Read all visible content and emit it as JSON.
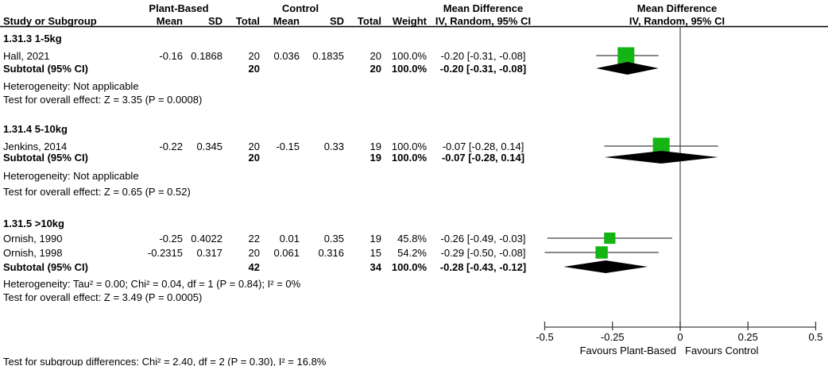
{
  "header": {
    "group1_label": "Plant-Based",
    "group2_label": "Control",
    "effect_title": "Mean Difference",
    "effect_sub": "IV, Random, 95% CI",
    "plot_title": "Mean Difference",
    "plot_sub": "IV, Random, 95% CI",
    "col_study": "Study or Subgroup",
    "col_mean": "Mean",
    "col_sd": "SD",
    "col_total": "Total",
    "col_weight": "Weight"
  },
  "chart_data": {
    "type": "forest",
    "effect_measure": "Mean Difference",
    "method": "IV, Random, 95% CI",
    "x_axis": {
      "min": -0.5,
      "max": 0.5,
      "tick_values": [
        -0.5,
        -0.25,
        0,
        0.25,
        0.5
      ],
      "tick_labels": [
        "-0.5",
        "-0.25",
        "0",
        "0.25",
        "0.5"
      ],
      "label_left": "Favours Plant-Based",
      "label_right": "Favours Control"
    },
    "subgroups": [
      {
        "name": "1.31.3 1-5kg",
        "studies": [
          {
            "study": "Hall, 2021",
            "exp_mean": "-0.16",
            "exp_sd": "0.1868",
            "exp_total": "20",
            "ctl_mean": "0.036",
            "ctl_sd": "0.1835",
            "ctl_total": "20",
            "weight": "100.0%",
            "weight_value": 100.0,
            "ci_label": "-0.20 [-0.31, -0.08]",
            "estimate": -0.2,
            "ci_low": -0.31,
            "ci_high": -0.08
          }
        ],
        "subtotal": {
          "label": "Subtotal (95% CI)",
          "exp_total": "20",
          "ctl_total": "20",
          "weight": "100.0%",
          "ci_label": "-0.20 [-0.31, -0.08]",
          "estimate": -0.2,
          "ci_low": -0.31,
          "ci_high": -0.08
        },
        "heterogeneity": "Heterogeneity: Not applicable",
        "overall_effect": "Test for overall effect: Z = 3.35 (P = 0.0008)"
      },
      {
        "name": "1.31.4 5-10kg",
        "studies": [
          {
            "study": "Jenkins, 2014",
            "exp_mean": "-0.22",
            "exp_sd": "0.345",
            "exp_total": "20",
            "ctl_mean": "-0.15",
            "ctl_sd": "0.33",
            "ctl_total": "19",
            "weight": "100.0%",
            "weight_value": 100.0,
            "ci_label": "-0.07 [-0.28, 0.14]",
            "estimate": -0.07,
            "ci_low": -0.28,
            "ci_high": 0.14
          }
        ],
        "subtotal": {
          "label": "Subtotal (95% CI)",
          "exp_total": "20",
          "ctl_total": "19",
          "weight": "100.0%",
          "ci_label": "-0.07 [-0.28, 0.14]",
          "estimate": -0.07,
          "ci_low": -0.28,
          "ci_high": 0.14
        },
        "heterogeneity": "Heterogeneity: Not applicable",
        "overall_effect": "Test for overall effect: Z = 0.65 (P = 0.52)"
      },
      {
        "name": "1.31.5 >10kg",
        "studies": [
          {
            "study": "Ornish, 1990",
            "exp_mean": "-0.25",
            "exp_sd": "0.4022",
            "exp_total": "22",
            "ctl_mean": "0.01",
            "ctl_sd": "0.35",
            "ctl_total": "19",
            "weight": "45.8%",
            "weight_value": 45.8,
            "ci_label": "-0.26 [-0.49, -0.03]",
            "estimate": -0.26,
            "ci_low": -0.49,
            "ci_high": -0.03
          },
          {
            "study": "Ornish, 1998",
            "exp_mean": "-0.2315",
            "exp_sd": "0.317",
            "exp_total": "20",
            "ctl_mean": "0.061",
            "ctl_sd": "0.316",
            "ctl_total": "15",
            "weight": "54.2%",
            "weight_value": 54.2,
            "ci_label": "-0.29 [-0.50, -0.08]",
            "estimate": -0.29,
            "ci_low": -0.5,
            "ci_high": -0.08
          }
        ],
        "subtotal": {
          "label": "Subtotal (95% CI)",
          "exp_total": "42",
          "ctl_total": "34",
          "weight": "100.0%",
          "ci_label": "-0.28 [-0.43, -0.12]",
          "estimate": -0.28,
          "ci_low": -0.43,
          "ci_high": -0.12
        },
        "heterogeneity": "Heterogeneity: Tau² = 0.00; Chi² = 0.04, df = 1 (P = 0.84); I² = 0%",
        "overall_effect": "Test for overall effect: Z = 3.49 (P = 0.0005)"
      }
    ],
    "footer": "Test for subgroup differences: Chi² = 2.40, df = 2 (P = 0.30), I² = 16.8%",
    "colors": {
      "square": "#14b414",
      "diamond": "#000000",
      "ci_line": "#404040",
      "zero_line": "#5a5a5a",
      "axis": "#404040",
      "header_line": "#000000"
    }
  }
}
